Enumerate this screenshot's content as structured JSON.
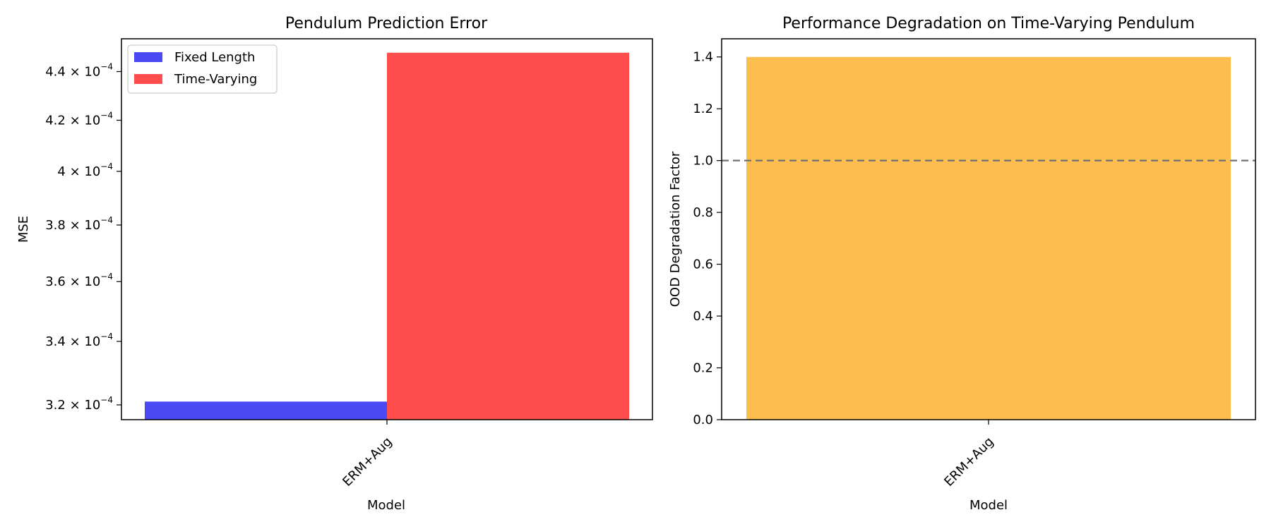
{
  "chart_data": [
    {
      "type": "bar",
      "title": "Pendulum Prediction Error",
      "xlabel": "Model",
      "ylabel": "MSE",
      "yscale": "log",
      "ylim": [
        0.0003155,
        0.000454
      ],
      "categories": [
        "ERM+Aug"
      ],
      "series": [
        {
          "name": "Fixed Length",
          "color": "#4a4af5",
          "values": [
            0.000321
          ]
        },
        {
          "name": "Time-Varying",
          "color": "#ff4d4d",
          "values": [
            0.000448
          ]
        }
      ],
      "yticks": [
        {
          "value": 0.00032,
          "mantissa": "3.2",
          "exponent": "−4"
        },
        {
          "value": 0.00034,
          "mantissa": "3.4",
          "exponent": "−4"
        },
        {
          "value": 0.00036,
          "mantissa": "3.6",
          "exponent": "−4"
        },
        {
          "value": 0.00038,
          "mantissa": "3.8",
          "exponent": "−4"
        },
        {
          "value": 0.0004,
          "mantissa": "4",
          "exponent": "−4"
        },
        {
          "value": 0.00042,
          "mantissa": "4.2",
          "exponent": "−4"
        },
        {
          "value": 0.00044,
          "mantissa": "4.4",
          "exponent": "−4"
        }
      ],
      "legend_position": "upper-left",
      "grid": false
    },
    {
      "type": "bar",
      "title": "Performance Degradation on Time-Varying Pendulum",
      "xlabel": "Model",
      "ylabel": "OOD Degradation Factor",
      "ylim": [
        0,
        1.47
      ],
      "categories": [
        "ERM+Aug"
      ],
      "series": [
        {
          "color": "#fdbd4f",
          "values": [
            1.4
          ]
        }
      ],
      "yticks": [
        "0.0",
        "0.2",
        "0.4",
        "0.6",
        "0.8",
        "1.0",
        "1.2",
        "1.4"
      ],
      "reference_line": {
        "y": 1.0,
        "style": "dashed",
        "color": "#707070"
      },
      "grid": false
    }
  ]
}
